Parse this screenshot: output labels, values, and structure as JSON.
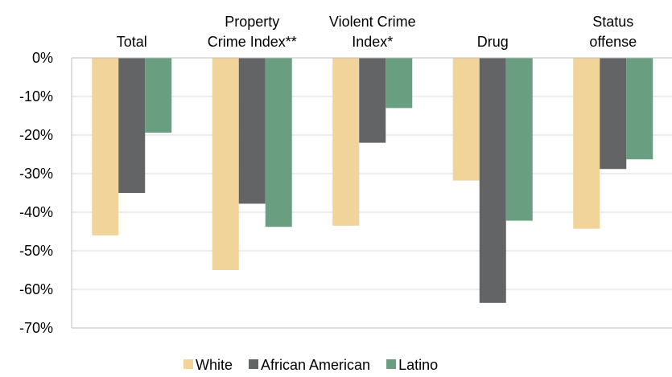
{
  "chart_data": {
    "type": "bar",
    "categories": [
      [
        "Total"
      ],
      [
        "Property",
        "Crime Index**"
      ],
      [
        "Violent Crime",
        "Index*"
      ],
      [
        "Drug"
      ],
      [
        "Status",
        "offense"
      ]
    ],
    "series": [
      {
        "name": "White",
        "color": "#f0d49a",
        "values": [
          -46,
          -55,
          -43.5,
          -31.8,
          -44.3
        ]
      },
      {
        "name": "African American",
        "color": "#636466",
        "values": [
          -35,
          -37.8,
          -22,
          -63.5,
          -28.8
        ]
      },
      {
        "name": "Latino",
        "color": "#6a9e80",
        "values": [
          -19.4,
          -43.8,
          -13,
          -42.2,
          -26.3
        ]
      }
    ],
    "yticks": [
      {
        "value": 0,
        "label": "0%"
      },
      {
        "value": -10,
        "label": "-10%"
      },
      {
        "value": -20,
        "label": "-20%"
      },
      {
        "value": -30,
        "label": "-30%"
      },
      {
        "value": -40,
        "label": "-40%"
      },
      {
        "value": -50,
        "label": "-50%"
      },
      {
        "value": -60,
        "label": "-60%"
      },
      {
        "value": -70,
        "label": "-70%"
      }
    ],
    "ylim": [
      -70,
      0
    ],
    "grid": true,
    "legend_position": "bottom",
    "gridline_color": "#d9d9d9",
    "axis_color": "#bfbfbf"
  }
}
